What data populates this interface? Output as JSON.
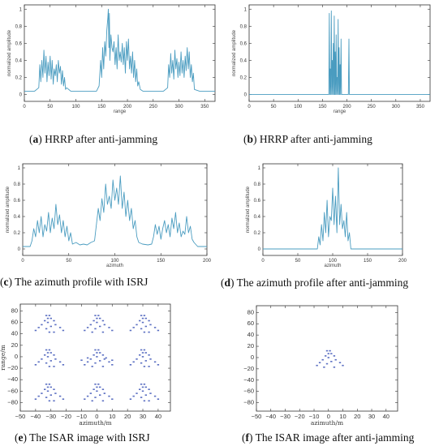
{
  "captions": {
    "a": {
      "letter": "a",
      "text": " HRRP after anti-jamming"
    },
    "b": {
      "letter": "b",
      "text": " HRRP after anti-jamming"
    },
    "c": {
      "letter": "c",
      "text": " The azimuth profile with ISRJ"
    },
    "d": {
      "letter": "d",
      "text": " The azimuth profile after anti-jamming"
    },
    "e": {
      "letter": "e",
      "text": " The ISAR image with ISRJ"
    },
    "f": {
      "letter": "f",
      "text": " The ISAR image after anti-jamming"
    }
  },
  "chart_data": [
    {
      "id": "a",
      "type": "line",
      "xlabel": "range",
      "ylabel": "normalized amplitude",
      "xlim": [
        0,
        370
      ],
      "ylim": [
        -0.08,
        1.05
      ],
      "xticks": [
        0,
        50,
        100,
        150,
        200,
        250,
        300,
        350
      ],
      "yticks": [
        0,
        0.2,
        0.4,
        0.6,
        0.8,
        1
      ],
      "color": "#4a9cc0",
      "series": [
        {
          "x": [
            0,
            20,
            28,
            30,
            32,
            34,
            36,
            38,
            40,
            42,
            44,
            46,
            48,
            50,
            52,
            54,
            56,
            58,
            60,
            62,
            64,
            66,
            68,
            70,
            72,
            74,
            76,
            78,
            80,
            82,
            90,
            140,
            145,
            148,
            150,
            152,
            154,
            156,
            158,
            160,
            162,
            163,
            164,
            165,
            166,
            168,
            170,
            172,
            174,
            176,
            178,
            180,
            182,
            184,
            186,
            188,
            190,
            192,
            194,
            196,
            198,
            200,
            202,
            204,
            206,
            208,
            210,
            212,
            214,
            216,
            218,
            220,
            222,
            225,
            230,
            270,
            278,
            280,
            282,
            284,
            286,
            288,
            290,
            292,
            294,
            296,
            298,
            300,
            302,
            304,
            306,
            308,
            310,
            312,
            314,
            316,
            318,
            320,
            322,
            324,
            326,
            328,
            330,
            340,
            370
          ],
          "y": [
            0.04,
            0.04,
            0.08,
            0.35,
            0.15,
            0.4,
            0.2,
            0.52,
            0.25,
            0.45,
            0.15,
            0.38,
            0.22,
            0.45,
            0.18,
            0.4,
            0.12,
            0.3,
            0.22,
            0.35,
            0.15,
            0.4,
            0.25,
            0.33,
            0.12,
            0.28,
            0.1,
            0.2,
            0.06,
            0.08,
            0.04,
            0.04,
            0.1,
            0.4,
            0.2,
            0.55,
            0.3,
            0.62,
            0.45,
            0.75,
            0.9,
            1.0,
            0.55,
            0.95,
            0.4,
            0.7,
            0.55,
            0.5,
            0.62,
            0.35,
            0.55,
            0.3,
            0.7,
            0.4,
            0.5,
            0.38,
            0.6,
            0.35,
            0.55,
            0.25,
            0.62,
            0.4,
            0.65,
            0.3,
            0.45,
            0.25,
            0.5,
            0.2,
            0.4,
            0.15,
            0.3,
            0.1,
            0.15,
            0.06,
            0.04,
            0.04,
            0.08,
            0.35,
            0.2,
            0.48,
            0.25,
            0.4,
            0.18,
            0.52,
            0.3,
            0.42,
            0.2,
            0.38,
            0.22,
            0.5,
            0.25,
            0.4,
            0.2,
            0.45,
            0.28,
            0.55,
            0.3,
            0.5,
            0.2,
            0.35,
            0.15,
            0.25,
            0.06,
            0.04,
            0.04
          ]
        }
      ]
    },
    {
      "id": "b",
      "type": "line",
      "xlabel": "range",
      "ylabel": "normalized amplitude",
      "xlim": [
        0,
        370
      ],
      "ylim": [
        -0.08,
        1.05
      ],
      "xticks": [
        0,
        50,
        100,
        150,
        200,
        250,
        300,
        350
      ],
      "yticks": [
        0,
        0.2,
        0.4,
        0.6,
        0.8,
        1
      ],
      "color": "#4a9cc0",
      "series": [
        {
          "x": [
            0,
            163,
            164,
            165,
            166,
            167,
            168,
            169,
            170,
            171,
            172,
            173,
            174,
            175,
            176,
            177,
            178,
            179,
            180,
            181,
            182,
            183,
            184,
            185,
            186,
            187,
            188,
            189,
            190,
            203,
            204,
            205,
            370
          ],
          "y": [
            0,
            0,
            0.95,
            0,
            0.3,
            0,
            0.98,
            0,
            0.4,
            0,
            0.6,
            0,
            0.92,
            0,
            0.5,
            0,
            0.7,
            0,
            0.2,
            0,
            0.88,
            0,
            0.55,
            0,
            0.35,
            0,
            0.65,
            0,
            0,
            0,
            0.65,
            0,
            0
          ]
        }
      ]
    },
    {
      "id": "c",
      "type": "line",
      "xlabel": "azimuth",
      "ylabel": "normalized amplitude",
      "xlim": [
        0,
        200
      ],
      "ylim": [
        -0.08,
        1.05
      ],
      "xticks": [
        0,
        50,
        100,
        150,
        200
      ],
      "yticks": [
        0,
        0.2,
        0.4,
        0.6,
        0.8,
        1
      ],
      "color": "#4a9cc0",
      "series": [
        {
          "x": [
            0,
            8,
            10,
            12,
            14,
            16,
            18,
            20,
            22,
            24,
            26,
            28,
            30,
            32,
            34,
            36,
            38,
            40,
            42,
            44,
            46,
            48,
            50,
            52,
            54,
            58,
            62,
            66,
            70,
            74,
            78,
            80,
            82,
            84,
            86,
            88,
            90,
            92,
            94,
            96,
            98,
            100,
            102,
            104,
            106,
            108,
            110,
            112,
            114,
            116,
            118,
            120,
            122,
            124,
            126,
            130,
            136,
            140,
            142,
            144,
            146,
            148,
            150,
            152,
            154,
            156,
            158,
            160,
            162,
            164,
            166,
            168,
            170,
            172,
            174,
            176,
            178,
            180,
            182,
            184,
            186,
            190,
            200
          ],
          "y": [
            0.03,
            0.03,
            0.1,
            0.25,
            0.15,
            0.35,
            0.2,
            0.4,
            0.15,
            0.3,
            0.22,
            0.45,
            0.2,
            0.38,
            0.25,
            0.55,
            0.3,
            0.42,
            0.2,
            0.35,
            0.15,
            0.28,
            0.1,
            0.2,
            0.06,
            0.08,
            0.05,
            0.06,
            0.05,
            0.08,
            0.1,
            0.3,
            0.5,
            0.35,
            0.62,
            0.45,
            0.8,
            0.55,
            0.65,
            0.5,
            0.85,
            0.6,
            0.75,
            0.55,
            0.9,
            0.5,
            0.7,
            0.4,
            0.6,
            0.35,
            0.5,
            0.25,
            0.35,
            0.15,
            0.08,
            0.06,
            0.05,
            0.06,
            0.15,
            0.3,
            0.18,
            0.28,
            0.12,
            0.25,
            0.35,
            0.2,
            0.3,
            0.15,
            0.38,
            0.25,
            0.45,
            0.2,
            0.32,
            0.15,
            0.22,
            0.18,
            0.4,
            0.2,
            0.28,
            0.12,
            0.08,
            0.03,
            0.03
          ]
        }
      ]
    },
    {
      "id": "d",
      "type": "line",
      "xlabel": "azimuth",
      "ylabel": "normalized amplitude",
      "xlim": [
        0,
        200
      ],
      "ylim": [
        -0.08,
        1.05
      ],
      "xticks": [
        0,
        50,
        100,
        150,
        200
      ],
      "yticks": [
        0,
        0.2,
        0.4,
        0.6,
        0.8,
        1
      ],
      "color": "#4a9cc0",
      "series": [
        {
          "x": [
            0,
            78,
            80,
            82,
            84,
            86,
            88,
            90,
            92,
            94,
            96,
            98,
            100,
            102,
            104,
            106,
            108,
            110,
            112,
            114,
            116,
            118,
            120,
            122,
            124,
            126,
            200
          ],
          "y": [
            0,
            0,
            0.15,
            0.05,
            0.3,
            0.1,
            0.45,
            0.2,
            0.6,
            0.15,
            0.4,
            0.35,
            0.75,
            0.3,
            0.65,
            0.2,
            1.0,
            0.3,
            0.55,
            0.25,
            0.35,
            0.15,
            0.45,
            0.1,
            0.2,
            0,
            0
          ]
        }
      ]
    },
    {
      "id": "e",
      "type": "scatter",
      "xlabel": "azimuth/m",
      "ylabel": "range/m",
      "xlim": [
        -50,
        48
      ],
      "ylim": [
        -95,
        92
      ],
      "xticks": [
        -50,
        -40,
        -30,
        -20,
        -10,
        0,
        10,
        20,
        30,
        40
      ],
      "yticks": [
        -80,
        -60,
        -40,
        -20,
        0,
        20,
        40,
        60,
        80
      ],
      "color": "#5b6fc2",
      "series": [
        {
          "x": [
            -33,
            -31,
            -32,
            -30,
            -34,
            -28,
            -32,
            -36,
            -27,
            -30,
            -38,
            -24,
            -33,
            -40,
            -22,
            -28,
            -31,
            -1,
            1,
            0,
            2,
            -2,
            4,
            0,
            -4,
            5,
            2,
            -6,
            8,
            -1,
            -8,
            10,
            4,
            -3,
            29,
            31,
            30,
            32,
            28,
            34,
            30,
            26,
            35,
            32,
            24,
            38,
            29,
            22,
            40,
            34,
            31,
            -33,
            -31,
            -32,
            -30,
            -34,
            -28,
            -32,
            -36,
            -27,
            -30,
            -38,
            -24,
            -33,
            -40,
            -22,
            -28,
            -31,
            -1,
            1,
            0,
            2,
            -2,
            4,
            0,
            -4,
            5,
            2,
            -6,
            8,
            -1,
            -8,
            10,
            4,
            -3,
            -6,
            6,
            -10,
            10,
            29,
            31,
            30,
            32,
            28,
            34,
            30,
            26,
            35,
            32,
            24,
            38,
            29,
            22,
            40,
            34,
            31,
            -33,
            -31,
            -32,
            -30,
            -34,
            -28,
            -32,
            -36,
            -27,
            -30,
            -38,
            -24,
            -33,
            -40,
            -22,
            -28,
            -31,
            -1,
            1,
            0,
            2,
            -2,
            4,
            0,
            -4,
            5,
            2,
            -6,
            8,
            -1,
            -8,
            10,
            4,
            -3,
            29,
            31,
            30,
            32,
            28,
            34,
            30,
            26,
            35,
            32,
            24,
            38,
            29,
            22,
            40,
            34,
            31
          ],
          "y": [
            72,
            72,
            67,
            67,
            63,
            63,
            60,
            56,
            56,
            53,
            51,
            51,
            49,
            46,
            46,
            43,
            43,
            72,
            72,
            67,
            67,
            63,
            63,
            60,
            56,
            56,
            53,
            51,
            51,
            49,
            46,
            46,
            43,
            43,
            72,
            72,
            67,
            67,
            63,
            63,
            60,
            56,
            56,
            53,
            51,
            51,
            49,
            46,
            46,
            43,
            43,
            12,
            12,
            7,
            7,
            3,
            3,
            0,
            -4,
            -4,
            -7,
            -9,
            -9,
            -11,
            -14,
            -14,
            -17,
            -17,
            12,
            12,
            7,
            7,
            3,
            3,
            0,
            -4,
            -4,
            -7,
            -9,
            -9,
            -11,
            -14,
            -14,
            -17,
            -17,
            -2,
            -2,
            -6,
            -6,
            12,
            12,
            7,
            7,
            3,
            3,
            0,
            -4,
            -4,
            -7,
            -9,
            -9,
            -11,
            -14,
            -14,
            -17,
            -17,
            -48,
            -48,
            -53,
            -53,
            -57,
            -57,
            -60,
            -64,
            -64,
            -67,
            -69,
            -69,
            -71,
            -74,
            -74,
            -77,
            -77,
            -48,
            -48,
            -53,
            -53,
            -57,
            -57,
            -60,
            -64,
            -64,
            -67,
            -69,
            -69,
            -71,
            -74,
            -74,
            -77,
            -77,
            -48,
            -48,
            -53,
            -53,
            -57,
            -57,
            -60,
            -64,
            -64,
            -67,
            -69,
            -69,
            -71,
            -74,
            -74,
            -77,
            -77
          ]
        }
      ]
    },
    {
      "id": "f",
      "type": "scatter",
      "xlabel": "azimuth/m",
      "ylabel": "",
      "xlim": [
        -50,
        48
      ],
      "ylim": [
        -95,
        92
      ],
      "xticks": [
        -50,
        -40,
        -30,
        -20,
        -10,
        0,
        10,
        20,
        30,
        40
      ],
      "yticks": [
        -80,
        -60,
        -40,
        -20,
        0,
        20,
        40,
        60,
        80
      ],
      "color": "#5b6fc2",
      "series": [
        {
          "x": [
            -1,
            1,
            0,
            2,
            -2,
            4,
            0,
            -4,
            5,
            2,
            -6,
            8,
            -1,
            -8,
            10,
            4,
            -3
          ],
          "y": [
            12,
            12,
            7,
            7,
            3,
            3,
            0,
            -4,
            -4,
            -7,
            -9,
            -9,
            -11,
            -14,
            -14,
            -17,
            -17
          ]
        }
      ]
    }
  ]
}
